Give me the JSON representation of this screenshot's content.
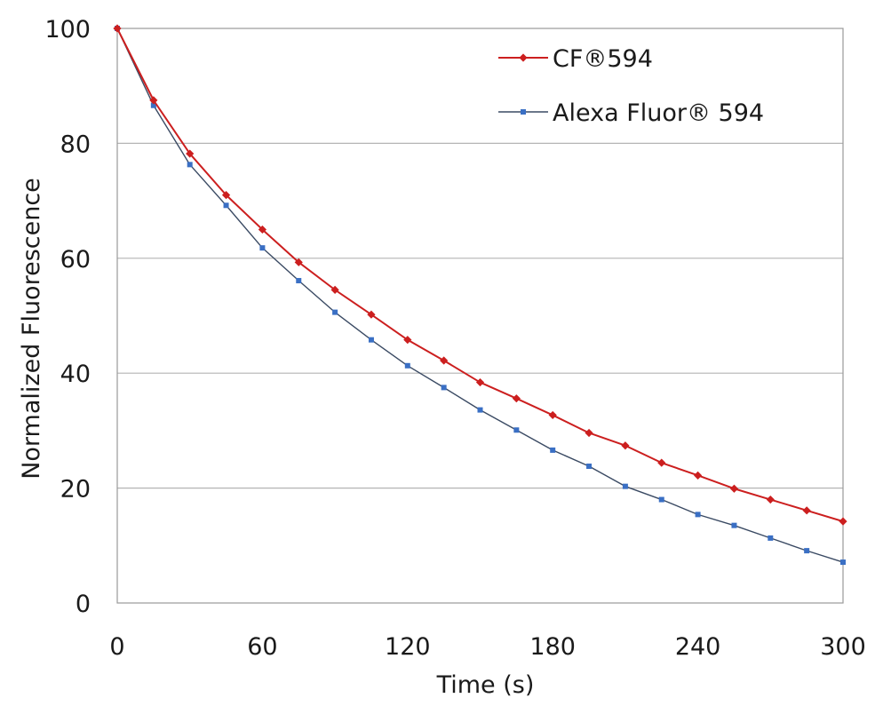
{
  "chart_data": {
    "type": "line",
    "title": "",
    "xlabel": "Time (s)",
    "ylabel": "Normalized Fluorescence",
    "xlim": [
      0,
      300
    ],
    "ylim": [
      0,
      100
    ],
    "x_ticks": [
      0,
      60,
      120,
      180,
      240,
      300
    ],
    "y_ticks": [
      0,
      20,
      40,
      60,
      80,
      100
    ],
    "x_tick_labels": [
      "0",
      "60",
      "120",
      "180",
      "240",
      "300"
    ],
    "y_tick_labels": [
      "0",
      "20",
      "40",
      "60",
      "80",
      "100"
    ],
    "grid": "horizontal",
    "legend_position": "top-right",
    "x": [
      0,
      15,
      30,
      45,
      60,
      75,
      90,
      105,
      120,
      135,
      150,
      165,
      180,
      195,
      210,
      225,
      240,
      255,
      270,
      285,
      300
    ],
    "series": [
      {
        "name": "CF®594",
        "color": "#cc1f1f",
        "marker": "diamond",
        "values": [
          100,
          87.5,
          78.2,
          71.0,
          65.0,
          59.3,
          54.5,
          50.2,
          45.8,
          42.2,
          38.4,
          35.6,
          32.7,
          29.6,
          27.4,
          24.4,
          22.2,
          19.9,
          18.0,
          16.1,
          14.2
        ]
      },
      {
        "name": "Alexa Fluor® 594",
        "color": "#3a6fc4",
        "line_color": "#3a4a63",
        "marker": "square",
        "values": [
          100,
          86.6,
          76.3,
          69.2,
          61.8,
          56.1,
          50.6,
          45.8,
          41.3,
          37.5,
          33.6,
          30.1,
          26.6,
          23.8,
          20.3,
          18.0,
          15.4,
          13.5,
          11.3,
          9.1,
          7.1
        ]
      }
    ]
  }
}
